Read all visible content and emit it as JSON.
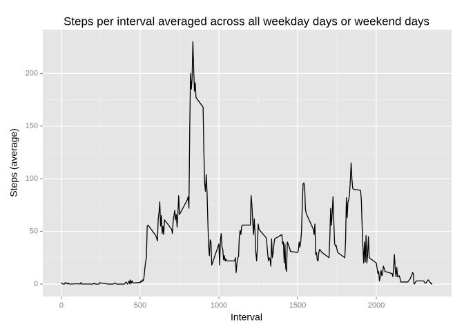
{
  "chart_data": {
    "type": "line",
    "title": "Steps per interval averaged across all weekday days or weekend days",
    "x_label": "Interval",
    "y_label": "Steps (average)",
    "x": [
      0,
      5,
      10,
      15,
      20,
      25,
      30,
      35,
      40,
      45,
      50,
      55,
      100,
      120,
      125,
      130,
      200,
      210,
      215,
      240,
      245,
      250,
      300,
      330,
      340,
      350,
      400,
      410,
      420,
      430,
      435,
      440,
      445,
      450,
      455,
      500,
      505,
      510,
      515,
      520,
      525,
      530,
      535,
      540,
      545,
      550,
      600,
      610,
      615,
      620,
      625,
      630,
      635,
      640,
      645,
      650,
      655,
      700,
      705,
      710,
      720,
      725,
      730,
      735,
      740,
      745,
      750,
      800,
      805,
      810,
      815,
      820,
      825,
      830,
      835,
      840,
      845,
      850,
      855,
      900,
      905,
      910,
      915,
      920,
      925,
      930,
      935,
      940,
      945,
      950,
      955,
      1000,
      1005,
      1010,
      1015,
      1020,
      1025,
      1030,
      1035,
      1040,
      1045,
      1050,
      1055,
      1100,
      1105,
      1110,
      1115,
      1120,
      1125,
      1130,
      1135,
      1140,
      1145,
      1150,
      1200,
      1205,
      1210,
      1215,
      1220,
      1225,
      1230,
      1235,
      1240,
      1245,
      1250,
      1255,
      1300,
      1305,
      1310,
      1315,
      1320,
      1325,
      1330,
      1335,
      1340,
      1345,
      1350,
      1355,
      1400,
      1405,
      1410,
      1415,
      1420,
      1425,
      1430,
      1435,
      1440,
      1445,
      1450,
      1455,
      1500,
      1505,
      1510,
      1515,
      1520,
      1525,
      1530,
      1535,
      1540,
      1545,
      1550,
      1555,
      1600,
      1605,
      1610,
      1615,
      1620,
      1625,
      1630,
      1635,
      1640,
      1645,
      1650,
      1655,
      1700,
      1705,
      1710,
      1715,
      1720,
      1725,
      1730,
      1735,
      1740,
      1745,
      1750,
      1755,
      1800,
      1805,
      1810,
      1815,
      1820,
      1825,
      1830,
      1835,
      1840,
      1845,
      1850,
      1855,
      1900,
      1905,
      1910,
      1915,
      1920,
      1925,
      1930,
      1935,
      1940,
      1945,
      1950,
      1955,
      2000,
      2005,
      2010,
      2015,
      2020,
      2025,
      2030,
      2035,
      2040,
      2045,
      2050,
      2055,
      2100,
      2105,
      2110,
      2115,
      2120,
      2125,
      2130,
      2135,
      2140,
      2145,
      2150,
      2155,
      2200,
      2205,
      2210,
      2215,
      2220,
      2225,
      2230,
      2235,
      2240,
      2245,
      2250,
      2255,
      2300,
      2305,
      2310,
      2315,
      2320,
      2325,
      2330,
      2335,
      2340,
      2345,
      2350,
      2355
    ],
    "values": [
      1.5,
      0.3,
      0.1,
      0.1,
      0.1,
      1.5,
      0.5,
      1,
      0,
      1,
      0.2,
      0,
      0.3,
      0.1,
      1.5,
      0.1,
      0,
      1,
      0,
      0,
      1.5,
      1,
      0,
      0,
      1,
      0,
      0,
      2,
      0,
      3,
      0,
      4,
      1,
      3,
      1,
      1.5,
      3,
      2,
      4,
      3,
      7,
      15,
      21,
      25,
      55,
      56,
      46,
      41,
      62,
      68,
      78,
      55,
      65,
      48,
      55,
      47,
      61,
      52,
      48,
      60,
      70,
      61,
      66,
      54,
      67,
      84,
      66,
      80,
      83,
      72,
      145,
      200,
      185,
      195,
      230,
      205,
      183,
      191,
      177,
      168,
      125,
      95,
      88,
      104,
      87,
      60,
      36,
      27,
      42,
      40,
      18,
      38,
      18,
      42,
      48,
      35,
      33,
      23,
      27,
      22,
      24,
      22,
      22,
      22,
      25,
      11,
      20,
      25,
      26,
      45,
      51,
      47,
      55,
      56,
      56,
      84,
      75,
      60,
      47,
      62,
      48,
      30,
      22,
      35,
      57,
      52,
      44,
      38,
      29,
      22,
      25,
      24,
      17,
      43,
      25,
      30,
      38,
      43,
      47,
      38,
      40,
      20,
      38,
      15,
      12,
      40,
      38,
      36,
      34,
      31,
      30,
      32,
      40,
      35,
      40,
      50,
      75,
      95,
      96,
      92,
      71,
      67,
      52,
      47,
      57,
      28,
      30,
      23,
      22,
      30,
      33,
      32,
      31,
      30,
      25,
      45,
      72,
      56,
      68,
      83,
      60,
      39,
      36,
      37,
      33,
      30,
      25,
      42,
      82,
      63,
      78,
      80,
      86,
      98,
      115,
      100,
      91,
      90,
      89,
      80,
      55,
      35,
      20,
      40,
      21,
      46,
      20,
      28,
      45,
      25,
      20,
      15,
      10,
      12,
      3,
      7,
      13,
      8,
      10,
      17,
      15,
      12,
      10,
      7,
      15,
      28,
      15,
      7,
      16,
      7,
      7,
      8,
      6,
      2,
      2,
      3,
      4,
      5,
      7,
      8,
      11,
      10,
      0,
      1,
      2,
      3,
      3,
      2,
      1,
      1,
      2,
      3,
      4,
      3,
      2,
      1,
      0,
      1
    ],
    "color": "#000000",
    "xlim": [
      -118,
      2478
    ],
    "xticks": [
      0,
      500,
      1000,
      1500,
      2000
    ],
    "ylim": [
      -11.8,
      241.5
    ],
    "yticks": [
      0,
      50,
      100,
      150,
      200
    ],
    "grid": true
  }
}
